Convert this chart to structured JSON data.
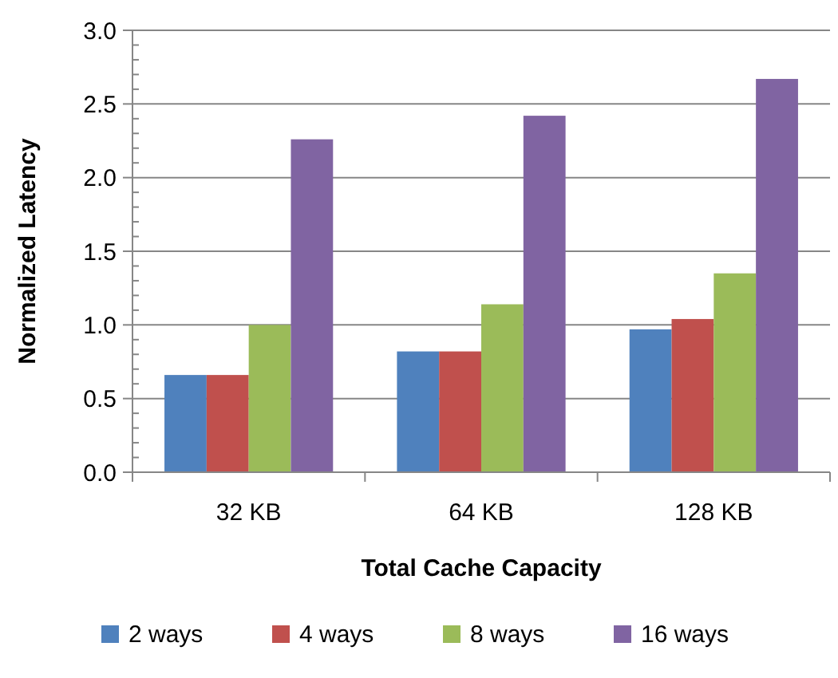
{
  "chart_data": {
    "type": "bar",
    "xlabel": "Total Cache Capacity",
    "ylabel": "Normalized Latency",
    "categories": [
      "32 KB",
      "64 KB",
      "128 KB"
    ],
    "series": [
      {
        "name": "2 ways",
        "color": "#4f81bd",
        "values": [
          0.66,
          0.82,
          0.97
        ]
      },
      {
        "name": "4 ways",
        "color": "#c0504d",
        "values": [
          0.66,
          0.82,
          1.04
        ]
      },
      {
        "name": "8 ways",
        "color": "#9bbb59",
        "values": [
          1.0,
          1.14,
          1.35
        ]
      },
      {
        "name": "16 ways",
        "color": "#8064a2",
        "values": [
          2.26,
          2.42,
          2.67
        ]
      }
    ],
    "ylim": [
      0,
      3
    ],
    "yticks": [
      {
        "value": 0,
        "label": "0.0"
      },
      {
        "value": 0.1,
        "label": null
      },
      {
        "value": 0.2,
        "label": null
      },
      {
        "value": 0.3,
        "label": null
      },
      {
        "value": 0.4,
        "label": null
      },
      {
        "value": 0.5,
        "label": "0.5"
      },
      {
        "value": 0.6,
        "label": null
      },
      {
        "value": 0.7,
        "label": null
      },
      {
        "value": 0.8,
        "label": null
      },
      {
        "value": 0.9,
        "label": null
      },
      {
        "value": 1,
        "label": "1.0"
      },
      {
        "value": 1.1,
        "label": null
      },
      {
        "value": 1.2,
        "label": null
      },
      {
        "value": 1.3,
        "label": null
      },
      {
        "value": 1.4,
        "label": null
      },
      {
        "value": 1.5,
        "label": "1.5"
      },
      {
        "value": 1.6,
        "label": null
      },
      {
        "value": 1.7,
        "label": null
      },
      {
        "value": 1.8,
        "label": null
      },
      {
        "value": 1.9,
        "label": null
      },
      {
        "value": 2,
        "label": "2.0"
      },
      {
        "value": 2.1,
        "label": null
      },
      {
        "value": 2.2,
        "label": null
      },
      {
        "value": 2.3,
        "label": null
      },
      {
        "value": 2.4,
        "label": null
      },
      {
        "value": 2.5,
        "label": "2.5"
      },
      {
        "value": 2.6,
        "label": null
      },
      {
        "value": 2.7,
        "label": null
      },
      {
        "value": 2.8,
        "label": null
      },
      {
        "value": 2.9,
        "label": null
      },
      {
        "value": 3,
        "label": "3.0"
      }
    ],
    "grid": "y",
    "legend": "bottom"
  }
}
